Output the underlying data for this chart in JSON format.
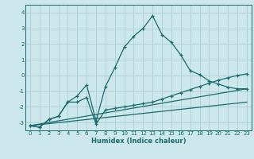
{
  "title": "",
  "xlabel": "Humidex (Indice chaleur)",
  "background_color": "#cce8ec",
  "grid_color": "#aacdd4",
  "line_color": "#1a6b6b",
  "xlim": [
    -0.5,
    23.5
  ],
  "ylim": [
    -3.5,
    4.5
  ],
  "yticks": [
    -3,
    -2,
    -1,
    0,
    1,
    2,
    3,
    4
  ],
  "xticks": [
    0,
    1,
    2,
    3,
    4,
    5,
    6,
    7,
    8,
    9,
    10,
    11,
    12,
    13,
    14,
    15,
    16,
    17,
    18,
    19,
    20,
    21,
    22,
    23
  ],
  "line1_x": [
    0,
    1,
    2,
    3,
    4,
    5,
    6,
    7,
    8,
    9,
    10,
    11,
    12,
    13,
    14,
    15,
    16,
    17,
    18,
    19,
    20,
    21,
    22,
    23
  ],
  "line1_y": [
    -3.2,
    -3.3,
    -2.8,
    -2.6,
    -1.7,
    -1.3,
    -0.6,
    -2.9,
    -0.7,
    0.5,
    1.8,
    2.5,
    3.0,
    3.8,
    2.6,
    2.1,
    1.3,
    0.3,
    0.05,
    -0.35,
    -0.55,
    -0.75,
    -0.85,
    -0.85
  ],
  "line2_x": [
    0,
    1,
    2,
    3,
    4,
    5,
    6,
    7,
    8,
    9,
    10,
    11,
    12,
    13,
    14,
    15,
    16,
    17,
    18,
    19,
    20,
    21,
    22,
    23
  ],
  "line2_y": [
    -3.2,
    -3.3,
    -2.8,
    -2.6,
    -1.7,
    -1.7,
    -1.4,
    -3.1,
    -2.2,
    -2.1,
    -2.0,
    -1.9,
    -1.8,
    -1.7,
    -1.5,
    -1.3,
    -1.1,
    -0.9,
    -0.7,
    -0.5,
    -0.3,
    -0.15,
    0.0,
    0.1
  ],
  "line3_x": [
    0,
    23
  ],
  "line3_y": [
    -3.2,
    -0.85
  ],
  "line4_x": [
    0,
    23
  ],
  "line4_y": [
    -3.2,
    -1.7
  ]
}
